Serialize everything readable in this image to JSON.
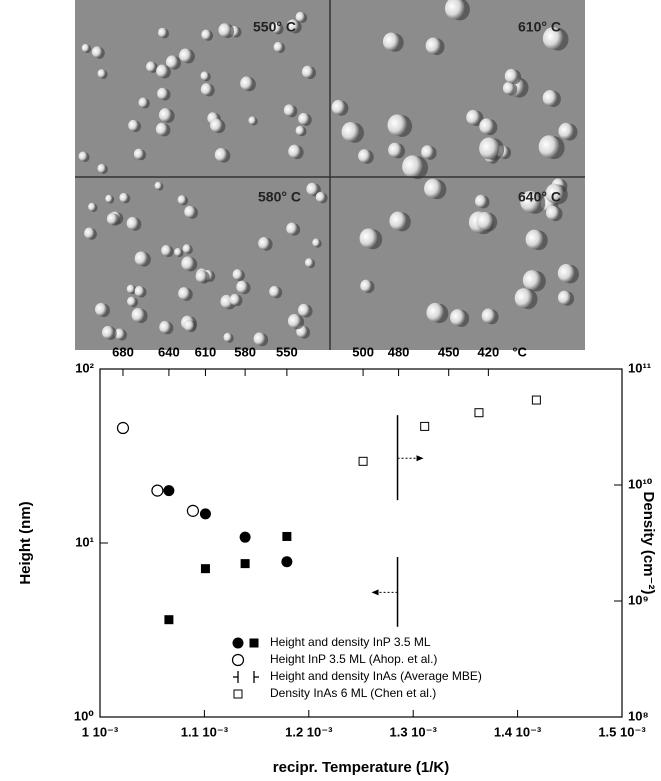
{
  "image_panels": [
    {
      "label": "550° C"
    },
    {
      "label": "610° C"
    },
    {
      "label": "580° C"
    },
    {
      "label": "640° C"
    }
  ],
  "chart_data": {
    "type": "scatter",
    "x_label": "recipr. Temperature (1/K)",
    "y_label": "Height (nm)",
    "y2_label": "Density (cm⁻²)",
    "xlim": [
      0.001,
      0.0015
    ],
    "xticks": [
      {
        "value": 0.001,
        "label": "1 10⁻³"
      },
      {
        "value": 0.0011,
        "label": "1.1 10⁻³"
      },
      {
        "value": 0.0012,
        "label": "1.2 10⁻³"
      },
      {
        "value": 0.0013,
        "label": "1.3 10⁻³"
      },
      {
        "value": 0.0014,
        "label": "1.4 10⁻³"
      },
      {
        "value": 0.0015,
        "label": "1.5 10⁻³"
      }
    ],
    "x2ticks": [
      {
        "value": 0.001022,
        "label": "680"
      },
      {
        "value": 0.001066,
        "label": "640"
      },
      {
        "value": 0.001101,
        "label": "610"
      },
      {
        "value": 0.001139,
        "label": "580"
      },
      {
        "value": 0.001179,
        "label": "550"
      },
      {
        "value": 0.001252,
        "label": "500"
      },
      {
        "value": 0.001286,
        "label": "480"
      },
      {
        "value": 0.001334,
        "label": "450"
      },
      {
        "value": 0.001372,
        "label": "420"
      }
    ],
    "x2_unit": "°C",
    "y_scale": "log",
    "ylim": [
      1,
      100
    ],
    "yticks": [
      {
        "value": 1,
        "label": "10⁰"
      },
      {
        "value": 10,
        "label": "10¹"
      },
      {
        "value": 100,
        "label": "10²"
      }
    ],
    "y2lim": [
      100000000,
      100000000000
    ],
    "y2ticks": [
      {
        "value": 100000000,
        "label": "10⁸"
      },
      {
        "value": 1000000000,
        "label": "10⁹"
      },
      {
        "value": 10000000000,
        "label": "10¹⁰"
      },
      {
        "value": 100000000000,
        "label": "10¹¹"
      }
    ],
    "legend": "lower right",
    "series": [
      {
        "name": "Height and density InP 3.5 ML",
        "marker": "filled-circle",
        "color": "#000000",
        "x": [
          0.001066,
          0.001101,
          0.001139,
          0.001179
        ],
        "values": [
          20,
          14.7,
          10.8,
          7.8
        ]
      },
      {
        "marker": "filled-square",
        "axis": "y2",
        "color": "#000000",
        "x": [
          0.001066,
          0.001101,
          0.001139,
          0.001179
        ],
        "values": [
          690000000,
          1900000000,
          2100000000,
          3600000000
        ]
      },
      {
        "name": "Height InP 3.5 ML (Ahop. et al.)",
        "marker": "open-circle",
        "color": "#000000",
        "x": [
          0.001022,
          0.001055,
          0.001089
        ],
        "values": [
          45.8,
          20,
          15.3
        ]
      },
      {
        "name": "Height and density InAs (Average MBE)",
        "marker": "bar-left",
        "color": "#000000",
        "x": [
          0.001285
        ],
        "values": [
          5.2
        ],
        "lower": [
          3.3
        ],
        "upper": [
          8.3
        ]
      },
      {
        "marker": "bar-right",
        "axis": "y2",
        "color": "#000000",
        "x": [
          0.001285
        ],
        "values": [
          17000000000
        ],
        "lower": [
          7400000000
        ],
        "upper": [
          40000000000
        ]
      },
      {
        "name": "Density InAs 6 ML (Chen et al.)",
        "marker": "open-square",
        "axis": "y2",
        "color": "#000000",
        "x": [
          0.001252,
          0.001311,
          0.001363,
          0.001418
        ],
        "values": [
          16000000000,
          32000000000,
          42000000000,
          54000000000
        ]
      }
    ]
  }
}
